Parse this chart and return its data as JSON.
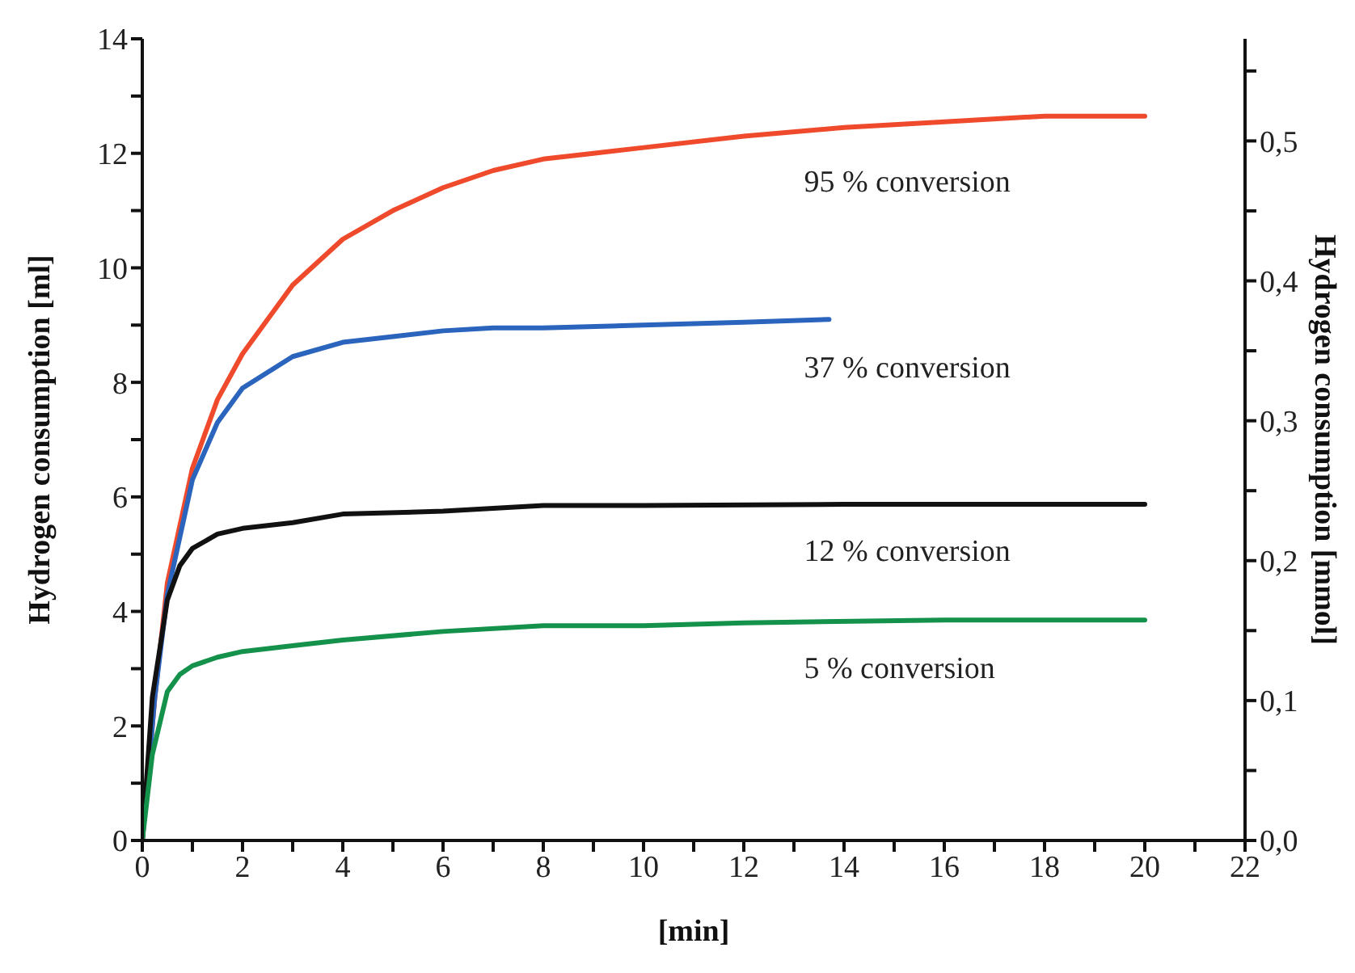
{
  "chart_data": {
    "type": "line",
    "xlabel": "[min]",
    "ylabel": "Hydrogen consumption [ml]",
    "y2label": "Hydrogen consumption [mmol]",
    "xlim": [
      0,
      22
    ],
    "xticks": [
      0,
      {
        "value": 1,
        "label": null
      },
      2,
      {
        "value": 3,
        "label": null
      },
      4,
      {
        "value": 5,
        "label": null
      },
      6,
      {
        "value": 7,
        "label": null
      },
      8,
      {
        "value": 9,
        "label": null
      },
      10,
      {
        "value": 11,
        "label": null
      },
      12,
      {
        "value": 13,
        "label": null
      },
      14,
      {
        "value": 15,
        "label": null
      },
      16,
      {
        "value": 17,
        "label": null
      },
      18,
      {
        "value": 19,
        "label": null
      },
      20,
      {
        "value": 21,
        "label": null
      },
      22
    ],
    "ylim": [
      0,
      14
    ],
    "yticks": [
      0,
      {
        "value": 1,
        "label": null
      },
      2,
      {
        "value": 3,
        "label": null
      },
      4,
      {
        "value": 5,
        "label": null
      },
      6,
      {
        "value": 7,
        "label": null
      },
      8,
      {
        "value": 9,
        "label": null
      },
      10,
      {
        "value": 11,
        "label": null
      },
      12,
      {
        "value": 13,
        "label": null
      },
      14
    ],
    "y2lim": [
      0,
      0.573
    ],
    "y2ticks": [
      {
        "value": 0,
        "label": "0,0"
      },
      {
        "value": 0.05,
        "label": null
      },
      {
        "value": 0.1,
        "label": "0,1"
      },
      {
        "value": 0.15,
        "label": null
      },
      {
        "value": 0.2,
        "label": "0,2"
      },
      {
        "value": 0.25,
        "label": null
      },
      {
        "value": 0.3,
        "label": "0,3"
      },
      {
        "value": 0.35,
        "label": null
      },
      {
        "value": 0.4,
        "label": "0,4"
      },
      {
        "value": 0.45,
        "label": null
      },
      {
        "value": 0.5,
        "label": "0,5"
      },
      {
        "value": 0.55,
        "label": null
      }
    ],
    "grid": false,
    "legend": false,
    "marker": "none",
    "line_style": "solid",
    "series": [
      {
        "name": "95 % conversion",
        "color": "#f04a2c",
        "x": [
          0,
          0.25,
          0.5,
          1,
          1.5,
          2,
          3,
          4,
          5,
          6,
          7,
          8,
          9,
          10,
          12,
          14,
          16,
          18,
          20
        ],
        "values": [
          0,
          2.5,
          4.5,
          6.5,
          7.7,
          8.5,
          9.7,
          10.5,
          11.0,
          11.4,
          11.7,
          11.9,
          12.0,
          12.1,
          12.3,
          12.45,
          12.55,
          12.65,
          12.65
        ]
      },
      {
        "name": "37 % conversion",
        "color": "#2a64bc",
        "x": [
          0,
          0.25,
          0.5,
          1,
          1.5,
          2,
          3,
          4,
          5,
          6,
          7,
          8,
          10,
          12,
          13.7
        ],
        "values": [
          0,
          2.5,
          4.3,
          6.3,
          7.3,
          7.9,
          8.45,
          8.7,
          8.8,
          8.9,
          8.95,
          8.95,
          9.0,
          9.05,
          9.1
        ]
      },
      {
        "name": "12 % conversion",
        "color": "#111111",
        "x": [
          0,
          0.2,
          0.5,
          0.75,
          1,
          1.5,
          2,
          3,
          4,
          6,
          8,
          10,
          14,
          20
        ],
        "values": [
          0,
          2.5,
          4.2,
          4.8,
          5.1,
          5.35,
          5.45,
          5.55,
          5.7,
          5.75,
          5.85,
          5.85,
          5.87,
          5.87
        ]
      },
      {
        "name": "5 % conversion",
        "color": "#14914a",
        "x": [
          0,
          0.2,
          0.5,
          0.75,
          1,
          1.5,
          2,
          3,
          4,
          6,
          8,
          10,
          12,
          16,
          20
        ],
        "values": [
          0,
          1.5,
          2.6,
          2.9,
          3.05,
          3.2,
          3.3,
          3.4,
          3.5,
          3.65,
          3.75,
          3.75,
          3.8,
          3.85,
          3.85
        ]
      }
    ]
  }
}
